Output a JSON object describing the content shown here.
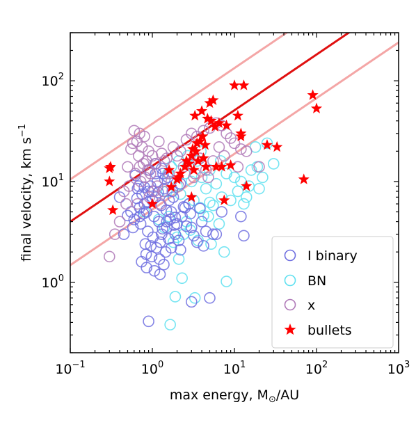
{
  "chart_data": {
    "type": "scatter",
    "xscale": "log",
    "yscale": "log",
    "xlim": [
      0.1,
      1000
    ],
    "ylim": [
      0.2,
      300
    ],
    "xlabel_main": "max energy, M",
    "xlabel_unit": "/AU",
    "ylabel_main": "final velocity, km s",
    "ylabel_sup": "−1",
    "x_ticks": [
      {
        "value": 0.1,
        "base": "10",
        "exp": "−1"
      },
      {
        "value": 1,
        "base": "10",
        "exp": "0"
      },
      {
        "value": 10,
        "base": "10",
        "exp": "1"
      },
      {
        "value": 100,
        "base": "10",
        "exp": "2"
      },
      {
        "value": 1000,
        "base": "10",
        "exp": "3"
      }
    ],
    "y_ticks": [
      {
        "value": 1,
        "base": "10",
        "exp": "0"
      },
      {
        "value": 10,
        "base": "10",
        "exp": "1"
      },
      {
        "value": 100,
        "base": "10",
        "exp": "2"
      }
    ],
    "legend": {
      "placement": "bottom-right",
      "entries": [
        "I binary",
        "BN",
        "x",
        "bullets"
      ]
    },
    "colors": {
      "i_binary": "#6f6fe0",
      "bn": "#5ee0f0",
      "x": "#b07ab8",
      "bullets": "#ff0000",
      "fit_line": "#e01010",
      "band_line": "#f4a6a6"
    },
    "lines": {
      "fit": {
        "x": [
          0.1,
          1000
        ],
        "y": [
          4.0,
          650
        ]
      },
      "upper": {
        "x": [
          0.1,
          1000
        ],
        "y": [
          10.5,
          1700
        ]
      },
      "lower": {
        "x": [
          0.1,
          1000
        ],
        "y": [
          1.48,
          240
        ]
      }
    },
    "series": [
      {
        "name": "I binary",
        "x": [
          0.85,
          1.0,
          1.2,
          0.9,
          1.5,
          0.7,
          1.1,
          1.3,
          0.95,
          1.05,
          0.8,
          1.7,
          2.0,
          1.4,
          0.6,
          0.75,
          1.25,
          1.6,
          0.55,
          2.3,
          1.15,
          0.88,
          1.35,
          0.65,
          1.9,
          2.5,
          1.45,
          0.78,
          1.02,
          1.8,
          3.0,
          4.0,
          2.2,
          1.55,
          0.92,
          1.12,
          1.65,
          0.72,
          0.68,
          1.28,
          2.8,
          3.5,
          0.98,
          1.38,
          5.5,
          0.58,
          0.82,
          1.22,
          1.48,
          2.1,
          1.75,
          2.6,
          0.5,
          0.62,
          1.08,
          1.9,
          3.2,
          0.87,
          0.45,
          1.18,
          1.42,
          2.4,
          0.96,
          0.74,
          1.33,
          1.58,
          0.66,
          2.9,
          4.5,
          0.4,
          1.06,
          1.24,
          0.84,
          1.85,
          3.8,
          2.2,
          6.0,
          0.9,
          1.5,
          0.7,
          1.3,
          1.0,
          4.2,
          7.0,
          12.0,
          13.0,
          1.1,
          0.8,
          3.0,
          5.0,
          0.85,
          1.7
        ],
        "y": [
          5.0,
          6.5,
          4.0,
          8.0,
          3.5,
          5.5,
          7.0,
          3.0,
          9.0,
          4.5,
          6.0,
          5.0,
          3.8,
          8.5,
          4.2,
          7.5,
          2.5,
          6.5,
          5.0,
          4.5,
          10.0,
          3.2,
          12.0,
          6.8,
          3.0,
          5.5,
          2.0,
          4.8,
          2.8,
          7.0,
          3.5,
          4.0,
          9.5,
          11.0,
          13.0,
          2.2,
          4.2,
          3.8,
          9.0,
          5.8,
          6.0,
          2.5,
          1.8,
          1.5,
          3.0,
          3.5,
          2.4,
          1.7,
          5.2,
          2.6,
          8.0,
          3.6,
          4.6,
          11.5,
          15.0,
          4.4,
          2.9,
          6.2,
          3.0,
          7.8,
          10.5,
          5.6,
          2.3,
          1.6,
          3.4,
          2.7,
          8.5,
          4.8,
          3.2,
          7.0,
          1.3,
          1.2,
          1.9,
          3.7,
          5.4,
          2.1,
          3.0,
          0.41,
          4.0,
          4.5,
          13.5,
          8.0,
          2.3,
          5.0,
          4.5,
          2.9,
          12.0,
          8.8,
          0.64,
          0.7,
          1.4,
          2.2
        ]
      },
      {
        "name": "BN",
        "x": [
          1.7,
          2.5,
          3.5,
          2.0,
          4.0,
          1.5,
          5.0,
          2.8,
          3.0,
          6.0,
          8.0,
          1.6,
          2.2,
          3.8,
          4.5,
          7.0,
          10.0,
          12.0,
          15.0,
          20.0,
          25.0,
          18.0,
          1.4,
          2.6,
          3.2,
          5.5,
          9.0,
          1.8,
          2.4,
          4.8,
          6.5,
          0.8,
          1.2,
          2.0,
          2.9,
          3.6,
          11.0,
          14.0,
          5.2,
          7.5,
          2.1,
          1.9,
          3.3,
          4.2,
          16.0,
          19.0,
          22.0,
          30.0,
          2.7,
          3.9,
          6.8,
          1.65,
          2.3,
          8.0,
          13.0,
          1.55,
          2.1,
          5.0
        ],
        "y": [
          14.0,
          12.0,
          16.0,
          9.0,
          11.0,
          8.0,
          13.0,
          6.0,
          10.0,
          9.5,
          12.0,
          4.5,
          7.5,
          5.5,
          8.5,
          7.0,
          11.0,
          10.0,
          9.0,
          8.5,
          24.0,
          22.0,
          3.5,
          4.0,
          6.5,
          5.8,
          6.5,
          2.5,
          3.0,
          4.5,
          3.8,
          5.0,
          4.2,
          2.8,
          3.3,
          2.6,
          8.0,
          7.0,
          2.4,
          2.0,
          1.7,
          0.72,
          0.7,
          4.6,
          13.0,
          14.0,
          11.0,
          15.0,
          18.0,
          20.0,
          16.0,
          0.38,
          1.1,
          1.02,
          6.0,
          12.0,
          16.0,
          6.2
        ]
      },
      {
        "name": "x",
        "x": [
          0.6,
          0.7,
          0.8,
          0.65,
          0.75,
          0.9,
          0.55,
          1.0,
          0.85,
          0.7,
          0.95,
          1.1,
          1.3,
          1.5,
          1.8,
          2.2,
          2.6,
          3.0,
          3.5,
          4.2,
          5.0,
          6.0,
          7.0,
          8.0,
          9.0,
          10.0,
          12.0,
          14.0,
          0.5,
          0.62,
          0.72,
          0.82,
          1.2,
          1.4,
          1.6,
          2.0,
          2.4,
          2.8,
          3.2,
          3.8,
          4.5,
          5.5,
          6.5,
          7.5,
          0.58,
          0.68,
          0.78,
          0.88,
          1.15,
          1.35,
          1.7,
          2.1,
          3.3,
          4.8,
          11.0,
          0.52,
          0.66,
          0.92,
          1.05,
          1.25,
          0.45,
          0.48,
          0.35,
          0.3,
          20.0,
          0.4
        ],
        "y": [
          32.0,
          30.0,
          28.0,
          25.0,
          22.0,
          20.0,
          21.0,
          18.0,
          16.0,
          14.0,
          12.0,
          15.0,
          19.0,
          17.0,
          22.0,
          20.0,
          26.0,
          30.0,
          28.0,
          32.0,
          34.0,
          38.0,
          36.0,
          30.0,
          27.0,
          24.0,
          21.0,
          20.0,
          14.0,
          12.0,
          10.0,
          11.0,
          25.0,
          16.0,
          12.0,
          18.0,
          14.0,
          15.0,
          11.0,
          17.0,
          13.0,
          16.0,
          22.0,
          18.0,
          24.0,
          18.0,
          15.0,
          13.0,
          9.0,
          8.0,
          10.0,
          9.0,
          12.0,
          11.0,
          14.0,
          9.0,
          6.0,
          7.0,
          8.0,
          6.0,
          8.0,
          6.0,
          3.0,
          1.8,
          14.0,
          4.0
        ]
      },
      {
        "name": "bullets",
        "x": [
          0.3,
          0.31,
          0.33,
          0.3,
          1.0,
          1.7,
          1.6,
          2.0,
          2.1,
          2.2,
          2.5,
          2.6,
          2.8,
          3.0,
          3.0,
          3.1,
          3.2,
          3.3,
          3.5,
          3.6,
          3.8,
          4.0,
          4.1,
          4.2,
          4.4,
          4.5,
          4.7,
          5.0,
          5.2,
          5.5,
          5.8,
          6.0,
          6.5,
          7.0,
          7.5,
          8.0,
          9.0,
          10.0,
          11.0,
          12.0,
          12.0,
          13.0,
          14.0,
          25.0,
          33.0,
          70.0,
          90.0,
          100.0,
          3.4
        ],
        "y": [
          13.5,
          14.0,
          5.2,
          10.0,
          6.0,
          8.8,
          13.0,
          10.5,
          11.0,
          12.0,
          14.0,
          16.0,
          15.0,
          7.0,
          18.0,
          21.0,
          13.0,
          45.0,
          24.0,
          16.0,
          25.0,
          50.0,
          28.0,
          17.0,
          23.0,
          14.0,
          42.0,
          60.0,
          40.0,
          64.0,
          35.0,
          14.0,
          38.0,
          14.0,
          6.5,
          36.0,
          14.5,
          90.0,
          45.0,
          28.0,
          30.0,
          90.0,
          9.0,
          23.0,
          22.0,
          10.5,
          72.0,
          53.0,
          20.0
        ]
      }
    ]
  }
}
